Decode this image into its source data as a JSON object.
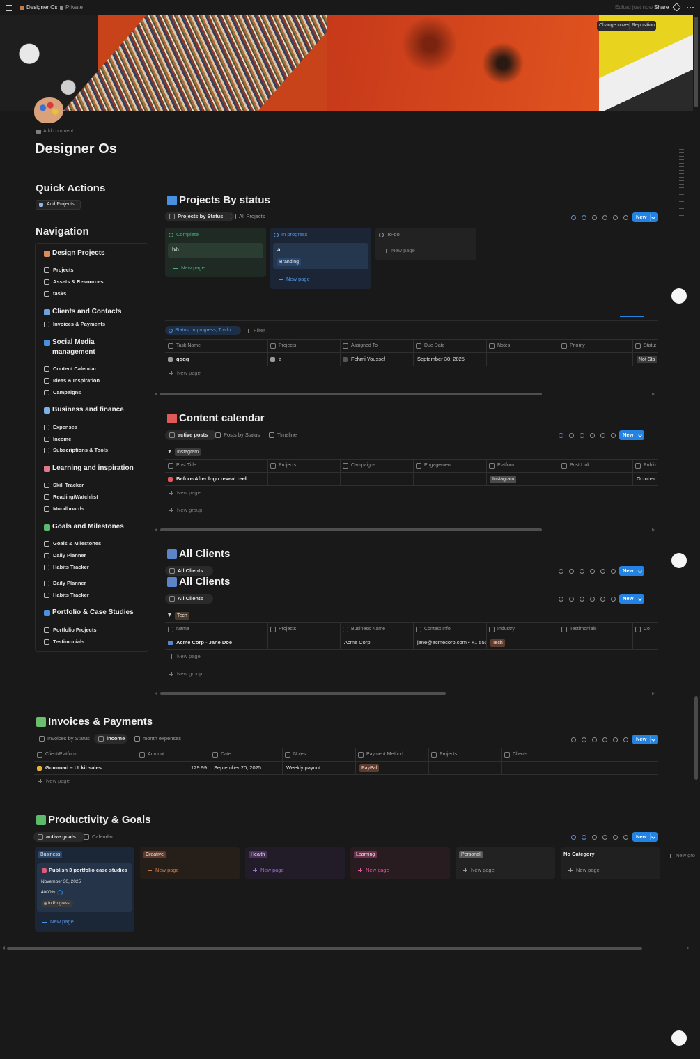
{
  "topbar": {
    "page": "Designer Os",
    "privacy": "Private",
    "edited": "Edited just now",
    "share": "Share"
  },
  "cover": {
    "change": "Change cover",
    "reposition": "Reposition"
  },
  "add_comment": "Add comment",
  "title": "Designer Os",
  "common": {
    "new": "New",
    "new_page": "New page",
    "new_group": "New group"
  },
  "quick_actions": {
    "title": "Quick Actions",
    "button": "Add Projects"
  },
  "navigation": {
    "title": "Navigation",
    "groups": [
      {
        "title": "Design Projects",
        "items": [
          "Projects",
          "Assets & Resources",
          "tasks"
        ]
      },
      {
        "title": "Clients and Contacts",
        "items": [
          "Invoices & Payments"
        ]
      },
      {
        "title": "Social Media management",
        "items": [
          "Content Calendar",
          "Ideas & Inspiration",
          "Campaigns"
        ]
      },
      {
        "title": "Business and finance",
        "items": [
          "Expenses",
          "Income",
          "Subscriptions & Tools"
        ]
      },
      {
        "title": "Learning and inspiration",
        "items": [
          "Skill Tracker",
          "Reading/Watchlist",
          "Moodboards"
        ]
      },
      {
        "title": "Goals and Milestones",
        "items": [
          "Goals & Milestones",
          "Daily Planner",
          "Habits Tracker",
          "Daily Planner",
          "Habits Tracker"
        ]
      },
      {
        "title": "Portfolio & Case Studies",
        "items": [
          "Portfolio Projects",
          "Testimonials"
        ]
      }
    ]
  },
  "projects": {
    "title": "Projects By status",
    "views": [
      "Projects by Status",
      "All Projects"
    ],
    "board": [
      {
        "status": "Complete",
        "cards": [
          {
            "title": "bb"
          }
        ]
      },
      {
        "status": "In progress",
        "cards": [
          {
            "title": "a",
            "tag": "Branding"
          }
        ]
      },
      {
        "status": "To-do",
        "cards": []
      }
    ],
    "filter": "Status: In progress, To-do",
    "filter_button": "Filter",
    "columns": [
      "Task Name",
      "Projects",
      "Assigned To",
      "Due Date",
      "Notes",
      "Priority",
      "Status"
    ],
    "rows": [
      [
        "qqqq",
        "a",
        "Fehmi Youssef",
        "September 30, 2025",
        null,
        null,
        "Not Sta"
      ]
    ]
  },
  "content_calendar": {
    "title": "Content calendar",
    "views": [
      "active posts",
      "Posts by Status",
      "Timeline"
    ],
    "group": "Instagram",
    "columns": [
      "Post Title",
      "Projects",
      "Campaigns",
      "Engagement",
      "Platform",
      "Post Link",
      "Publis"
    ],
    "rows": [
      [
        "Before-After logo reveal reel",
        null,
        null,
        null,
        "Instagram",
        null,
        "October 1"
      ]
    ]
  },
  "clients": {
    "title": "All Clients",
    "view": "All Clients",
    "group": "Tech",
    "columns": [
      "Name",
      "Projects",
      "Business Name",
      "Contact Info",
      "Industry",
      "Testimonials",
      "Co"
    ],
    "rows": [
      [
        "Acme Corp - Jane Doe",
        null,
        "Acme Corp",
        "jane@acmecorp.com • +1 555 (",
        "Tech",
        null,
        null
      ]
    ]
  },
  "invoices": {
    "title": "Invoices & Payments",
    "views": [
      "Invoices by Status",
      "income",
      "month expenses"
    ],
    "columns": [
      "Client/Platform",
      "Amount",
      "Date",
      "Notes",
      "Payment Method",
      "Projects",
      "Clients"
    ],
    "rows": [
      [
        "Gumroad – UI kit sales",
        129.99,
        "September 20, 2025",
        "Weekly payout",
        "PayPal",
        null,
        null
      ]
    ]
  },
  "productivity": {
    "title": "Productivity & Goals",
    "views": [
      "active goals",
      "Calendar"
    ],
    "groups": [
      {
        "name": "Business",
        "cards": [
          {
            "title": "Publish 3 portfolio case studies",
            "date": "November 30, 2025",
            "progress": "4000%",
            "status": "In Progress"
          }
        ]
      },
      {
        "name": "Creative",
        "cards": []
      },
      {
        "name": "Health",
        "cards": []
      },
      {
        "name": "Learning",
        "cards": []
      },
      {
        "name": "Personal",
        "cards": []
      },
      {
        "name": "No Category",
        "cards": []
      }
    ],
    "new_group": "New gro"
  }
}
